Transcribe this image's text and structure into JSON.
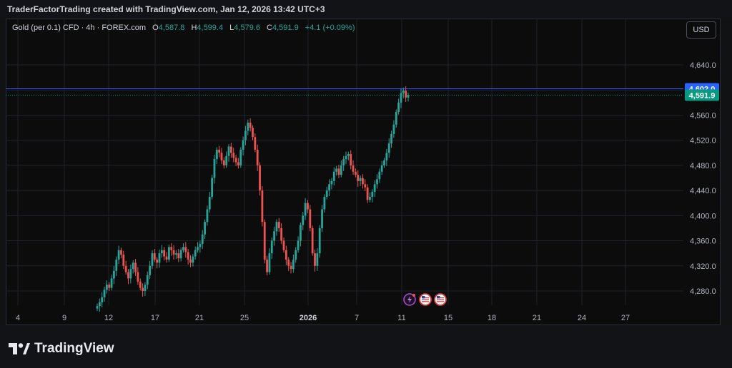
{
  "header": {
    "created_text": "TraderFactorTrading created with TradingView.com, Jan 12, 2026 13:42 UTC+3"
  },
  "legend": {
    "symbol": "Gold (per 0.1) CFD · 4h · FOREX.com",
    "o_label": "O",
    "o_value": "4,587.8",
    "h_label": "H",
    "h_value": "4,599.4",
    "l_label": "L",
    "l_value": "4,579.6",
    "c_label": "C",
    "c_value": "4,591.9",
    "change": "+4.1 (+0.09%)"
  },
  "currency_button": "USD",
  "footer": {
    "brand": "TradingView"
  },
  "colors": {
    "up": "#26a69a",
    "down": "#ef5350",
    "blue_line": "#2962ff",
    "current_price": "#089981",
    "grid": "#1f2229"
  },
  "event_icons": [
    "lightning-icon",
    "us-flag-icon",
    "us-flag-icon"
  ],
  "chart_data": {
    "type": "candlestick",
    "title": "",
    "interval": "4h",
    "y_axis": {
      "range": [
        4250,
        4690
      ],
      "ticks": [
        "4,280.0",
        "4,320.0",
        "4,360.0",
        "4,400.0",
        "4,440.0",
        "4,480.0",
        "4,520.0",
        "4,560.0",
        "4,600.0",
        "4,640.0"
      ],
      "tick_values": [
        4280,
        4320,
        4360,
        4400,
        4440,
        4480,
        4520,
        4560,
        4600,
        4640
      ]
    },
    "x_axis": {
      "ticks": [
        {
          "label": "4",
          "bold": false
        },
        {
          "label": "9",
          "bold": false
        },
        {
          "label": "12",
          "bold": false
        },
        {
          "label": "17",
          "bold": false
        },
        {
          "label": "21",
          "bold": false
        },
        {
          "label": "25",
          "bold": false
        },
        {
          "label": "2026",
          "bold": true
        },
        {
          "label": "7",
          "bold": false
        },
        {
          "label": "11",
          "bold": false
        },
        {
          "label": "15",
          "bold": false
        },
        {
          "label": "18",
          "bold": false
        },
        {
          "label": "21",
          "bold": false
        },
        {
          "label": "24",
          "bold": false
        },
        {
          "label": "27",
          "bold": false
        }
      ]
    },
    "price_labels": [
      {
        "value": 4602.0,
        "text": "4,602.0",
        "color": "#2962ff",
        "line": "solid"
      },
      {
        "value": 4591.9,
        "text": "4,591.9",
        "color": "#089981",
        "line": "dotted"
      }
    ],
    "grid": true,
    "series": [
      {
        "name": "",
        "closes": [
          4256,
          4262,
          4270,
          4282,
          4290,
          4285,
          4300,
          4312,
          4330,
          4345,
          4338,
          4320,
          4310,
          4300,
          4315,
          4325,
          4310,
          4295,
          4285,
          4280,
          4290,
          4305,
          4320,
          4340,
          4330,
          4325,
          4340,
          4345,
          4335,
          4330,
          4350,
          4345,
          4338,
          4340,
          4332,
          4345,
          4350,
          4342,
          4330,
          4325,
          4335,
          4345,
          4350,
          4355,
          4370,
          4390,
          4410,
          4430,
          4460,
          4490,
          4505,
          4500,
          4488,
          4480,
          4495,
          4510,
          4500,
          4492,
          4485,
          4480,
          4505,
          4520,
          4535,
          4548,
          4540,
          4525,
          4505,
          4480,
          4440,
          4390,
          4330,
          4310,
          4340,
          4360,
          4375,
          4390,
          4380,
          4360,
          4345,
          4330,
          4320,
          4315,
          4330,
          4345,
          4360,
          4385,
          4400,
          4420,
          4410,
          4380,
          4340,
          4320,
          4340,
          4380,
          4410,
          4430,
          4440,
          4450,
          4455,
          4470,
          4475,
          4465,
          4480,
          4490,
          4495,
          4498,
          4480,
          4470,
          4465,
          4455,
          4460,
          4450,
          4445,
          4425,
          4430,
          4438,
          4450,
          4458,
          4470,
          4480,
          4488,
          4500,
          4515,
          4530,
          4545,
          4565,
          4580,
          4595,
          4599,
          4588,
          4591.9
        ]
      }
    ]
  }
}
